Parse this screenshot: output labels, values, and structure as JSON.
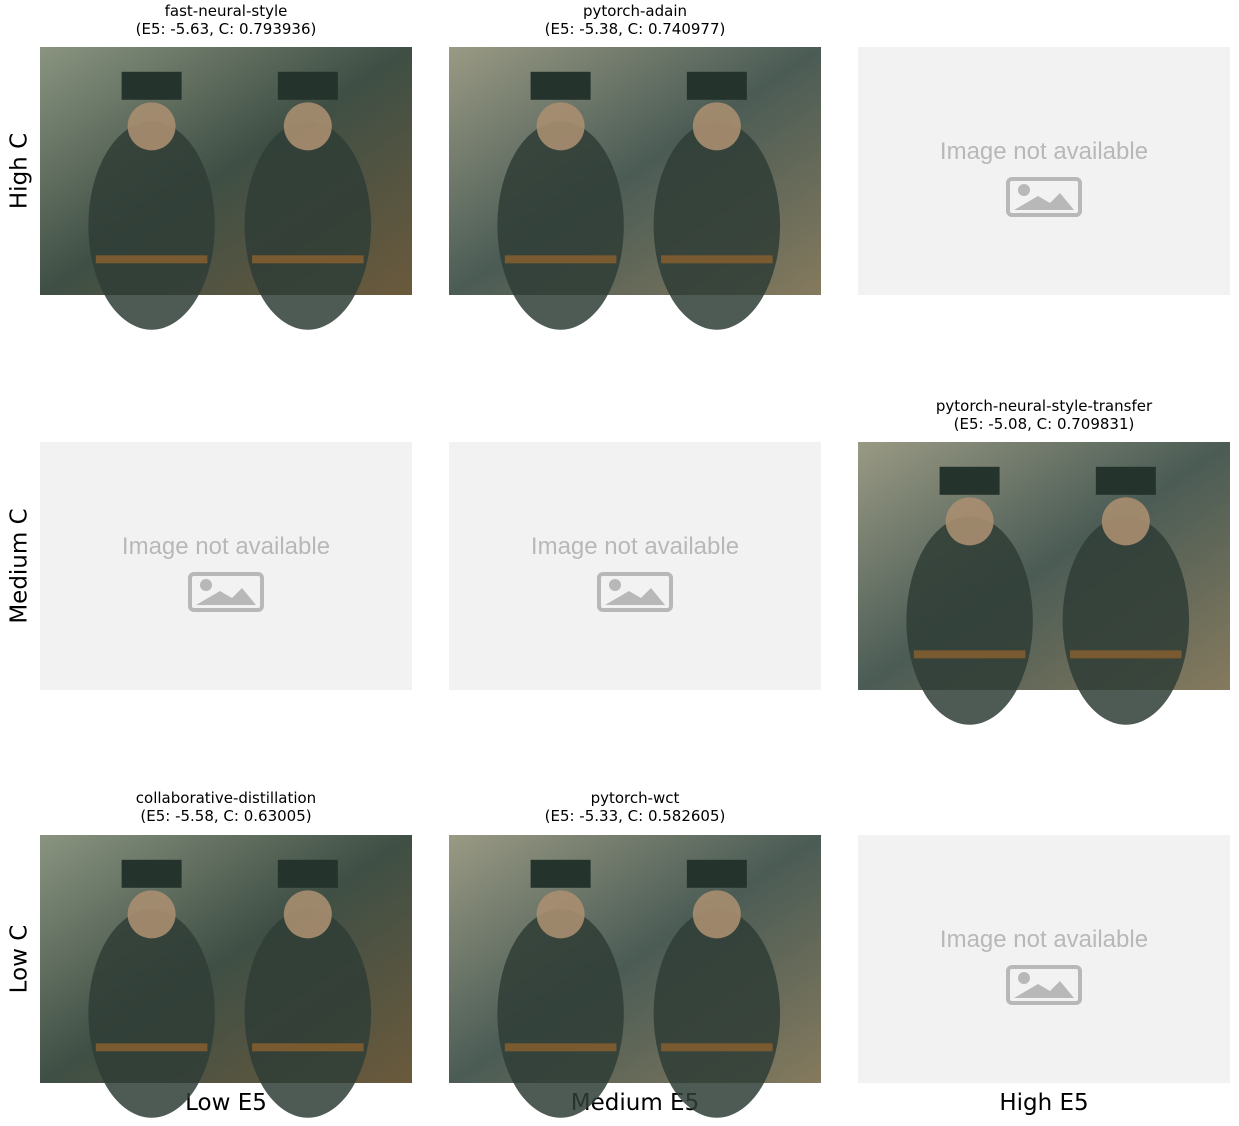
{
  "row_labels": [
    "High C",
    "Medium C",
    "Low C"
  ],
  "column_labels": [
    "Low E5",
    "Medium E5",
    "High E5"
  ],
  "cells": [
    [
      {
        "title": "fast-neural-style",
        "subtitle": "(E5: -5.63, C: 0.793936)"
      },
      {
        "title": "pytorch-adain",
        "subtitle": "(E5: -5.38, C: 0.740977)"
      },
      {
        "placeholder": "Image not available"
      }
    ],
    [
      {
        "placeholder": "Image not available"
      },
      {
        "placeholder": "Image not available"
      },
      {
        "title": "pytorch-neural-style-transfer",
        "subtitle": "(E5: -5.08, C: 0.709831)"
      }
    ],
    [
      {
        "title": "collaborative-distillation",
        "subtitle": "(E5: -5.58, C: 0.63005)"
      },
      {
        "title": "pytorch-wct",
        "subtitle": "(E5: -5.33, C: 0.582605)"
      },
      {
        "placeholder": "Image not available"
      }
    ]
  ]
}
